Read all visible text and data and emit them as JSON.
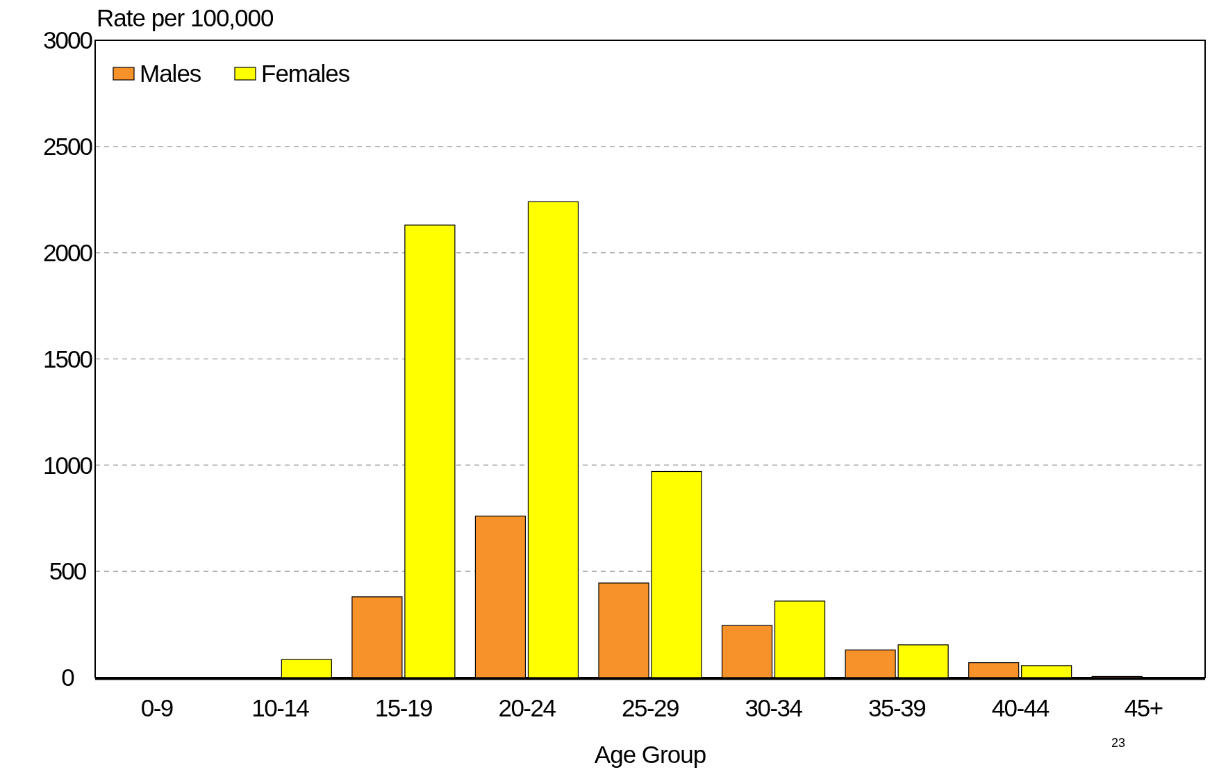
{
  "chart_data": {
    "type": "bar",
    "ylabel": "Rate per 100,000",
    "xlabel": "Age Group",
    "categories": [
      "0-9",
      "10-14",
      "15-19",
      "20-24",
      "25-29",
      "30-34",
      "35-39",
      "40-44",
      "45+"
    ],
    "series": [
      {
        "name": "Males",
        "color": "#f7922b",
        "values": [
          0,
          0,
          380,
          760,
          445,
          245,
          130,
          70,
          5
        ]
      },
      {
        "name": "Females",
        "color": "#ffff00",
        "values": [
          0,
          85,
          2130,
          2240,
          970,
          360,
          154,
          56,
          0
        ]
      }
    ],
    "ylim": [
      0,
      3000
    ],
    "yticks": [
      0,
      500,
      1000,
      1500,
      2000,
      2500,
      3000
    ],
    "grid": "y",
    "legend": "top left",
    "annotations": [
      "23"
    ]
  }
}
